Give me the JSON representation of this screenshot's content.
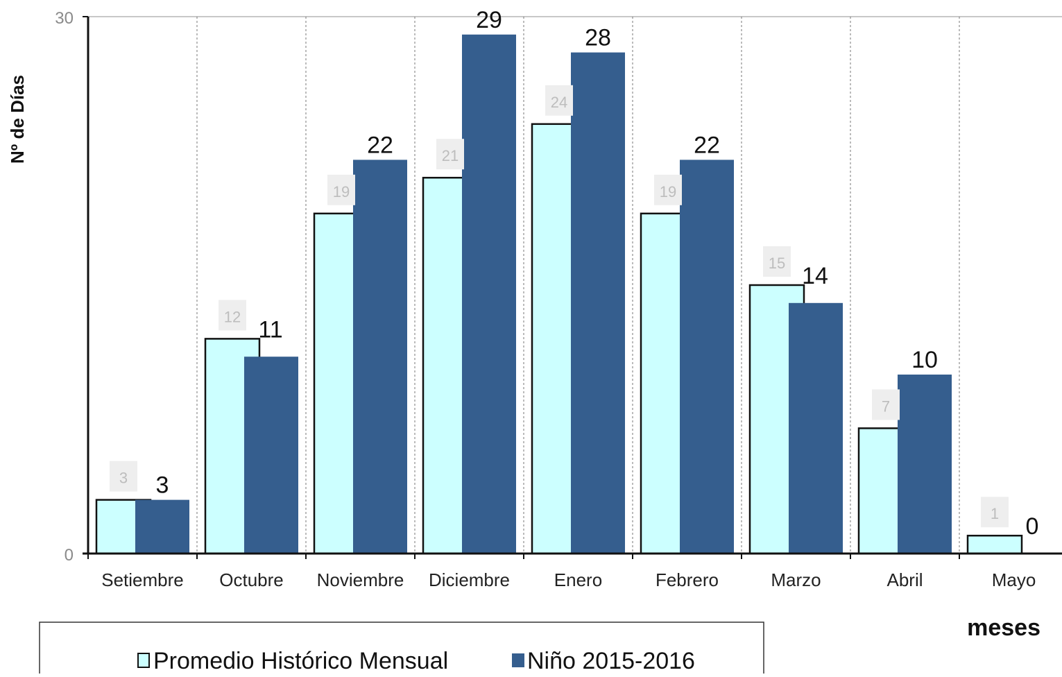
{
  "chart_data": {
    "type": "bar",
    "categories": [
      "Setiembre",
      "Octubre",
      "Noviembre",
      "Diciembre",
      "Enero",
      "Febrero",
      "Marzo",
      "Abril",
      "Mayo"
    ],
    "series": [
      {
        "name": "Promedio Histórico Mensual",
        "values": [
          3,
          12,
          19,
          21,
          24,
          19,
          15,
          7,
          1
        ],
        "color": "#ccffff"
      },
      {
        "name": "Niño 2015-2016",
        "values": [
          3,
          11,
          22,
          29,
          28,
          22,
          14,
          10,
          0
        ],
        "color": "#355e8e"
      }
    ],
    "title": "",
    "xlabel": "meses",
    "ylabel": "Nº de Días",
    "ylim": [
      0,
      30
    ],
    "y_ticks": [
      "0",
      "30"
    ],
    "grid": "vertical dashed separators between months",
    "legend_position": "bottom-left"
  }
}
